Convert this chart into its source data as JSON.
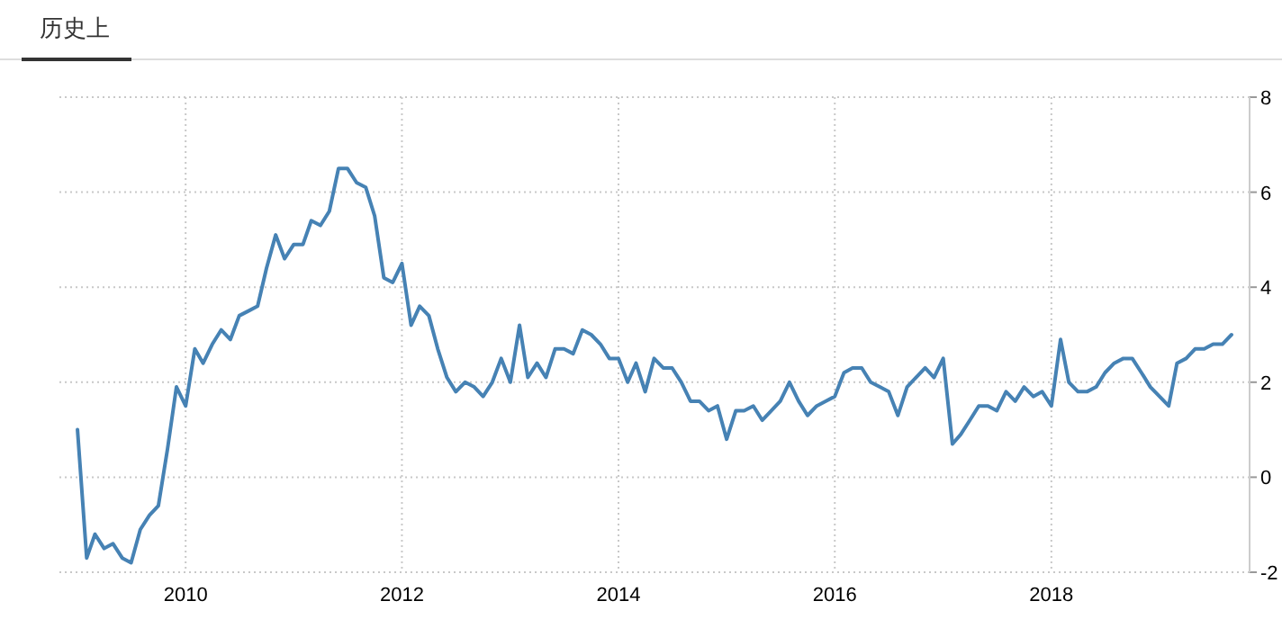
{
  "chart_data": {
    "type": "line",
    "title": "历史上",
    "x": [
      "2009-01",
      "2009-02",
      "2009-03",
      "2009-04",
      "2009-05",
      "2009-06",
      "2009-07",
      "2009-08",
      "2009-09",
      "2009-10",
      "2009-11",
      "2009-12",
      "2010-01",
      "2010-02",
      "2010-03",
      "2010-04",
      "2010-05",
      "2010-06",
      "2010-07",
      "2010-08",
      "2010-09",
      "2010-10",
      "2010-11",
      "2010-12",
      "2011-01",
      "2011-02",
      "2011-03",
      "2011-04",
      "2011-05",
      "2011-06",
      "2011-07",
      "2011-08",
      "2011-09",
      "2011-10",
      "2011-11",
      "2011-12",
      "2012-01",
      "2012-02",
      "2012-03",
      "2012-04",
      "2012-05",
      "2012-06",
      "2012-07",
      "2012-08",
      "2012-09",
      "2012-10",
      "2012-11",
      "2012-12",
      "2013-01",
      "2013-02",
      "2013-03",
      "2013-04",
      "2013-05",
      "2013-06",
      "2013-07",
      "2013-08",
      "2013-09",
      "2013-10",
      "2013-11",
      "2013-12",
      "2014-01",
      "2014-02",
      "2014-03",
      "2014-04",
      "2014-05",
      "2014-06",
      "2014-07",
      "2014-08",
      "2014-09",
      "2014-10",
      "2014-11",
      "2014-12",
      "2015-01",
      "2015-02",
      "2015-03",
      "2015-04",
      "2015-05",
      "2015-06",
      "2015-07",
      "2015-08",
      "2015-09",
      "2015-10",
      "2015-11",
      "2015-12",
      "2016-01",
      "2016-02",
      "2016-03",
      "2016-04",
      "2016-05",
      "2016-06",
      "2016-07",
      "2016-08",
      "2016-09",
      "2016-10",
      "2016-11",
      "2016-12",
      "2017-01",
      "2017-02",
      "2017-03",
      "2017-04",
      "2017-05",
      "2017-06",
      "2017-07",
      "2017-08",
      "2017-09",
      "2017-10",
      "2017-11",
      "2017-12",
      "2018-01",
      "2018-02",
      "2018-03",
      "2018-04",
      "2018-05",
      "2018-06",
      "2018-07",
      "2018-08",
      "2018-09",
      "2018-10",
      "2018-11",
      "2018-12",
      "2019-01",
      "2019-02",
      "2019-03",
      "2019-04",
      "2019-05",
      "2019-06",
      "2019-07",
      "2019-08",
      "2019-09"
    ],
    "series": [
      {
        "color": "#4682b4",
        "values": [
          1.0,
          -1.7,
          -1.2,
          -1.5,
          -1.4,
          -1.7,
          -1.8,
          -1.1,
          -0.8,
          -0.6,
          0.6,
          1.9,
          1.5,
          2.7,
          2.4,
          2.8,
          3.1,
          2.9,
          3.4,
          3.5,
          3.6,
          4.4,
          5.1,
          4.6,
          4.9,
          4.9,
          5.4,
          5.3,
          5.6,
          6.5,
          6.5,
          6.2,
          6.1,
          5.5,
          4.2,
          4.1,
          4.5,
          3.2,
          3.6,
          3.4,
          2.7,
          2.1,
          1.8,
          2.0,
          1.9,
          1.7,
          2.0,
          2.5,
          2.0,
          3.2,
          2.1,
          2.4,
          2.1,
          2.7,
          2.7,
          2.6,
          3.1,
          3.0,
          2.8,
          2.5,
          2.5,
          2.0,
          2.4,
          1.8,
          2.5,
          2.3,
          2.3,
          2.0,
          1.6,
          1.6,
          1.4,
          1.5,
          0.8,
          1.4,
          1.4,
          1.5,
          1.2,
          1.4,
          1.6,
          2.0,
          1.6,
          1.3,
          1.5,
          1.6,
          1.7,
          2.2,
          2.3,
          2.3,
          2.0,
          1.9,
          1.8,
          1.3,
          1.9,
          2.1,
          2.3,
          2.1,
          2.5,
          0.7,
          0.9,
          1.2,
          1.5,
          1.5,
          1.4,
          1.8,
          1.6,
          1.9,
          1.7,
          1.8,
          1.5,
          2.9,
          2.0,
          1.8,
          1.8,
          1.9,
          2.2,
          2.4,
          2.5,
          2.5,
          2.2,
          1.9,
          1.7,
          1.5,
          2.4,
          2.5,
          2.7,
          2.7,
          2.8,
          2.8,
          3.0
        ]
      }
    ],
    "xlim": [
      "2008-11",
      "2019-11"
    ],
    "xticks": [
      {
        "value": "2010-01",
        "label": "2010"
      },
      {
        "value": "2012-01",
        "label": "2012"
      },
      {
        "value": "2014-01",
        "label": "2014"
      },
      {
        "value": "2016-01",
        "label": "2016"
      },
      {
        "value": "2018-01",
        "label": "2018"
      }
    ],
    "ylim": [
      -2,
      8
    ],
    "yticks": [
      -2,
      0,
      2,
      4,
      6,
      8
    ],
    "grid": true,
    "marker": "none",
    "line_style": "solid"
  }
}
